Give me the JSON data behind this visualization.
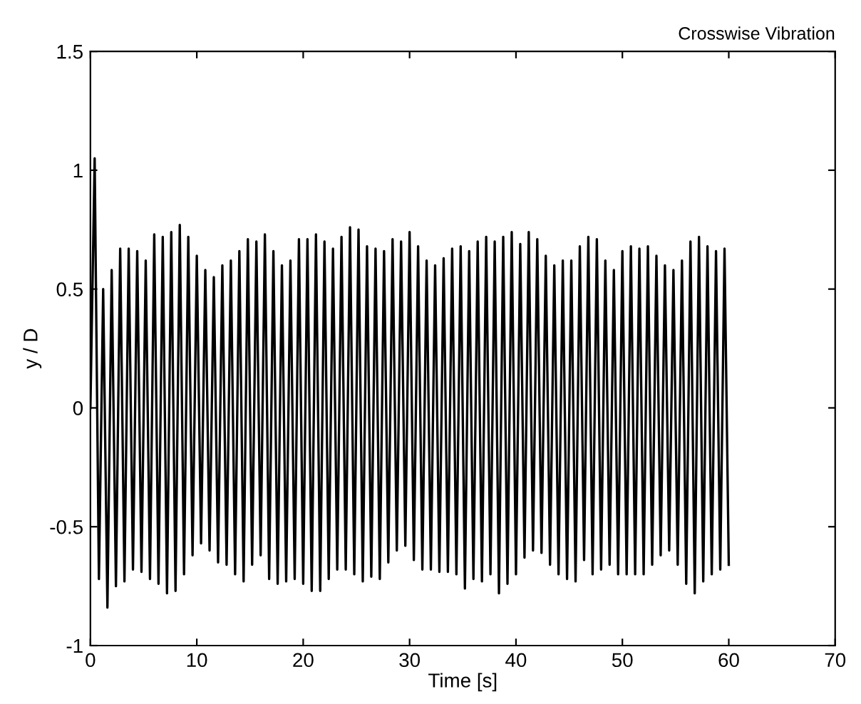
{
  "chart_data": {
    "type": "line",
    "title": "Crosswise Vibration",
    "xlabel": "Time [s]",
    "ylabel": "y / D",
    "x": [
      0,
      0.4,
      0.8,
      1.2,
      1.6,
      2.0,
      2.4,
      2.8,
      3.2,
      3.6,
      4.0,
      4.4,
      4.8,
      5.2,
      5.6,
      6.0,
      6.4,
      6.8,
      7.2,
      7.6,
      8.0,
      8.4,
      8.8,
      9.2,
      9.6,
      10.0,
      10.4,
      10.8,
      11.2,
      11.6,
      12.0,
      12.4,
      12.8,
      13.2,
      13.6,
      14.0,
      14.4,
      14.8,
      15.2,
      15.6,
      16.0,
      16.4,
      16.8,
      17.2,
      17.6,
      18.0,
      18.4,
      18.8,
      19.2,
      19.6,
      20.0,
      20.4,
      20.8,
      21.2,
      21.6,
      22.0,
      22.4,
      22.8,
      23.2,
      23.6,
      24.0,
      24.4,
      24.8,
      25.2,
      25.6,
      26.0,
      26.4,
      26.8,
      27.2,
      27.6,
      28.0,
      28.4,
      28.8,
      29.2,
      29.6,
      30.0,
      30.4,
      30.8,
      31.2,
      31.6,
      32.0,
      32.4,
      32.8,
      33.2,
      33.6,
      34.0,
      34.4,
      34.8,
      35.2,
      35.6,
      36.0,
      36.4,
      36.8,
      37.2,
      37.6,
      38.0,
      38.4,
      38.8,
      39.2,
      39.6,
      40.0,
      40.4,
      40.8,
      41.2,
      41.6,
      42.0,
      42.4,
      42.8,
      43.2,
      43.6,
      44.0,
      44.4,
      44.8,
      45.2,
      45.6,
      46.0,
      46.4,
      46.8,
      47.2,
      47.6,
      48.0,
      48.4,
      48.8,
      49.2,
      49.6,
      50.0,
      50.4,
      50.8,
      51.2,
      51.6,
      52.0,
      52.4,
      52.8,
      53.2,
      53.6,
      54.0,
      54.4,
      54.8,
      55.2,
      55.6,
      56.0,
      56.4,
      56.8,
      57.2,
      57.6,
      58.0,
      58.4,
      58.8,
      59.2,
      59.6,
      60.0
    ],
    "series": [
      {
        "color": "#000000",
        "values": [
          0,
          1.05,
          -0.72,
          0.5,
          -0.84,
          0.58,
          -0.75,
          0.67,
          -0.73,
          0.67,
          -0.68,
          0.66,
          -0.69,
          0.62,
          -0.72,
          0.73,
          -0.74,
          0.72,
          -0.78,
          0.74,
          -0.77,
          0.77,
          -0.7,
          0.72,
          -0.62,
          0.64,
          -0.57,
          0.58,
          -0.6,
          0.55,
          -0.65,
          0.6,
          -0.66,
          0.62,
          -0.7,
          0.66,
          -0.73,
          0.71,
          -0.66,
          0.7,
          -0.62,
          0.73,
          -0.72,
          0.66,
          -0.74,
          0.6,
          -0.73,
          0.62,
          -0.72,
          0.71,
          -0.74,
          0.71,
          -0.77,
          0.73,
          -0.77,
          0.7,
          -0.72,
          0.67,
          -0.68,
          0.72,
          -0.68,
          0.76,
          -0.7,
          0.75,
          -0.73,
          0.68,
          -0.71,
          0.67,
          -0.72,
          0.66,
          -0.65,
          0.71,
          -0.6,
          0.7,
          -0.58,
          0.74,
          -0.64,
          0.68,
          -0.68,
          0.62,
          -0.68,
          0.6,
          -0.69,
          0.63,
          -0.69,
          0.67,
          -0.7,
          0.68,
          -0.76,
          0.66,
          -0.72,
          0.7,
          -0.73,
          0.72,
          -0.7,
          0.7,
          -0.78,
          0.72,
          -0.74,
          0.74,
          -0.7,
          0.69,
          -0.63,
          0.74,
          -0.6,
          0.71,
          -0.61,
          0.64,
          -0.66,
          0.6,
          -0.7,
          0.62,
          -0.72,
          0.62,
          -0.73,
          0.68,
          -0.64,
          0.72,
          -0.7,
          0.71,
          -0.68,
          0.62,
          -0.66,
          0.58,
          -0.7,
          0.66,
          -0.7,
          0.68,
          -0.7,
          0.67,
          -0.7,
          0.68,
          -0.66,
          0.64,
          -0.62,
          0.6,
          -0.6,
          0.58,
          -0.66,
          0.62,
          -0.74,
          0.7,
          -0.78,
          0.72,
          -0.73,
          0.68,
          -0.7,
          0.66,
          -0.68,
          0.67,
          -0.66
        ]
      }
    ],
    "xlim": [
      0,
      70
    ],
    "xticks": [
      0,
      10,
      20,
      30,
      40,
      50,
      60,
      70
    ],
    "ylim": [
      -1,
      1.5
    ],
    "yticks": [
      -1,
      -0.5,
      0,
      0.5,
      1,
      1.5
    ],
    "grid": false,
    "legend": false,
    "marker": "none",
    "line_style": "solid"
  }
}
